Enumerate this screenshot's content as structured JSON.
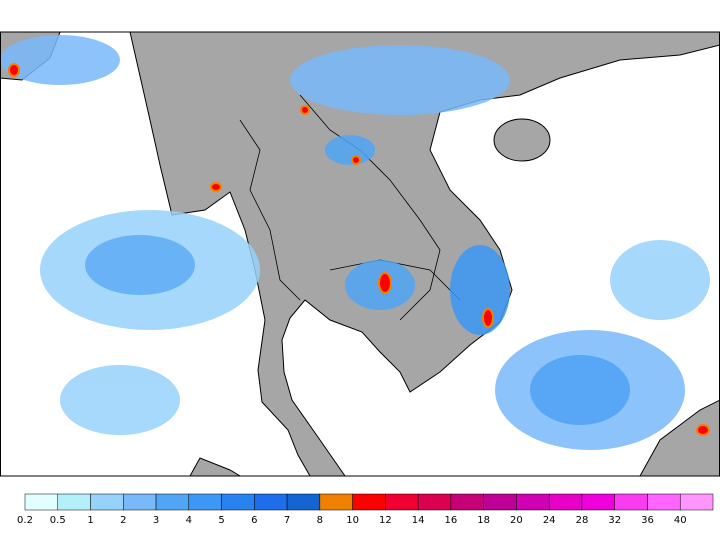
{
  "colorbar": {
    "levels": [
      0.2,
      0.5,
      1,
      2,
      3,
      4,
      5,
      6,
      7,
      8,
      10,
      12,
      14,
      16,
      18,
      20,
      24,
      28,
      32,
      36,
      40
    ],
    "colors": [
      "#e1ffff",
      "#b4f0fa",
      "#96d2fa",
      "#78b9fa",
      "#50a5f5",
      "#3c97f5",
      "#2882f0",
      "#1e6eeb",
      "#1464d2",
      "#f08000",
      "#ff0000",
      "#f00030",
      "#dc0050",
      "#c80078",
      "#be0096",
      "#d200b4",
      "#e600c8",
      "#f000dc",
      "#fa3cf0",
      "#ff64ff",
      "#ff96ff"
    ]
  }
}
